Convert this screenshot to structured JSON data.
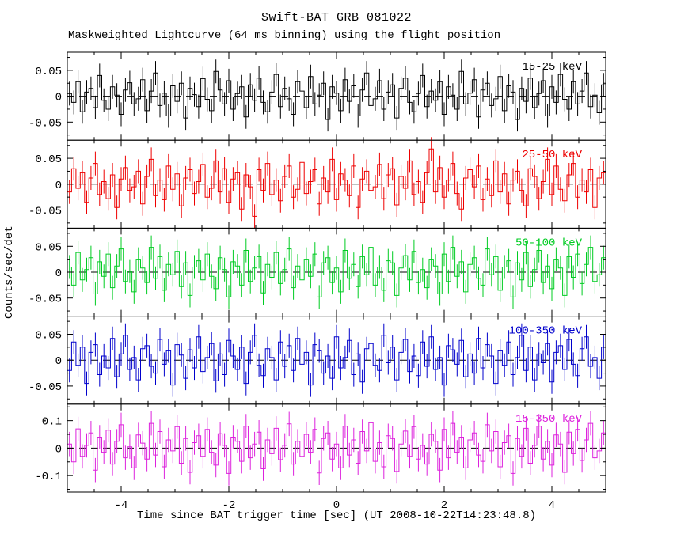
{
  "chart_data": {
    "type": "line",
    "style": "stepped histogram with vertical error bars, 5 stacked panels",
    "title": "Swift-BAT GRB 081022",
    "subtitle": "Maskweighted Lightcurve (64 ms binning) using the flight position",
    "xlabel": "Time since BAT trigger time [sec] (UT 2008-10-22T14:23:48.8)",
    "ylabel": "Counts/sec/det",
    "xlim": [
      -5,
      5
    ],
    "xticks_major": [
      -4,
      -2,
      0,
      2,
      4
    ],
    "xtick_minor_step": 0.5,
    "binning_label": "64 ms",
    "zero_line": {
      "style": "dashed",
      "color": "#000000"
    },
    "panels": [
      {
        "label": "15-25 keV",
        "color": "#000000",
        "ylim": [
          -0.085,
          0.085
        ],
        "yticks": [
          0.05,
          0,
          -0.05
        ],
        "ytick_minor_step": 0.025,
        "err_milli": 23,
        "values_milli": [
          5,
          -12,
          28,
          -30,
          8,
          15,
          -22,
          40,
          -8,
          -25,
          18,
          2,
          -35,
          12,
          26,
          -15,
          -5,
          32,
          -28,
          10,
          45,
          -18,
          6,
          -38,
          20,
          -10,
          25,
          -42,
          15,
          3,
          -20,
          34,
          -6,
          -28,
          48,
          12,
          -15,
          30,
          -25,
          5,
          18,
          -40,
          22,
          -8,
          35,
          -12,
          -30,
          8,
          42,
          -20,
          15,
          -5,
          -35,
          28,
          10,
          -22,
          38,
          -15,
          2,
          25,
          -45,
          18,
          6,
          -28,
          32,
          -10,
          20,
          -38,
          12,
          45,
          -18,
          -5,
          30,
          -25,
          8,
          22,
          -42,
          15,
          35,
          -12,
          -30,
          5,
          40,
          -20,
          10,
          -8,
          28,
          -35,
          18,
          2,
          -25,
          48,
          -15,
          6,
          32,
          -40,
          12,
          25,
          -18,
          -5,
          38,
          -28,
          20,
          8,
          -45,
          15,
          -10,
          35,
          -22,
          5,
          30,
          -38,
          18,
          -12,
          42,
          -6,
          -25,
          28,
          -15,
          10,
          45,
          -20,
          2,
          -32,
          22
        ]
      },
      {
        "label": "25-50 keV",
        "color": "#ee0000",
        "ylim": [
          -0.085,
          0.085
        ],
        "yticks": [
          0.05,
          0,
          -0.05
        ],
        "ytick_minor_step": 0.025,
        "err_milli": 23,
        "values_milli": [
          -15,
          30,
          -8,
          22,
          -35,
          12,
          40,
          -20,
          5,
          -28,
          18,
          -45,
          10,
          32,
          -12,
          -5,
          25,
          -38,
          15,
          48,
          -22,
          8,
          -30,
          35,
          -10,
          20,
          -42,
          12,
          28,
          -18,
          5,
          38,
          -25,
          -8,
          45,
          -15,
          30,
          -35,
          10,
          22,
          -48,
          18,
          -5,
          -62,
          28,
          -12,
          40,
          -20,
          8,
          -32,
          15,
          35,
          -25,
          -10,
          42,
          -18,
          5,
          28,
          -38,
          12,
          -15,
          48,
          -30,
          20,
          8,
          -22,
          35,
          -45,
          10,
          25,
          -12,
          -5,
          38,
          -28,
          18,
          30,
          -40,
          15,
          -8,
          45,
          -20,
          5,
          -35,
          22,
          68,
          -15,
          32,
          -25,
          8,
          40,
          -18,
          -48,
          12,
          28,
          -5,
          35,
          -30,
          10,
          -22,
          45,
          -15,
          20,
          -38,
          8,
          25,
          -12,
          -42,
          30,
          15,
          -28,
          5,
          48,
          -20,
          35,
          -10,
          -32,
          18,
          40,
          -25,
          8,
          -15,
          28,
          -45,
          12,
          22
        ]
      },
      {
        "label": "50-100 keV",
        "color": "#00cc22",
        "ylim": [
          -0.085,
          0.085
        ],
        "yticks": [
          0.05,
          0,
          -0.05
        ],
        "ytick_minor_step": 0.025,
        "err_milli": 23,
        "values_milli": [
          10,
          -25,
          38,
          -15,
          5,
          28,
          -42,
          20,
          -8,
          35,
          -30,
          12,
          45,
          -18,
          2,
          -38,
          25,
          8,
          -20,
          48,
          -12,
          30,
          -35,
          15,
          -5,
          40,
          -28,
          18,
          -45,
          10,
          22,
          -15,
          35,
          -8,
          -32,
          28,
          5,
          -48,
          20,
          12,
          -25,
          42,
          -18,
          8,
          30,
          -40,
          15,
          -10,
          38,
          -22,
          5,
          45,
          -30,
          12,
          -15,
          25,
          -8,
          35,
          -48,
          18,
          28,
          -20,
          8,
          -38,
          42,
          -12,
          15,
          -28,
          30,
          -5,
          48,
          -25,
          10,
          -35,
          22,
          18,
          -45,
          8,
          32,
          -15,
          40,
          -20,
          5,
          -30,
          25,
          12,
          -42,
          35,
          -18,
          48,
          -8,
          20,
          -38,
          15,
          28,
          -12,
          -25,
          45,
          -5,
          30,
          -35,
          10,
          22,
          -48,
          18,
          -15,
          38,
          -28,
          5,
          42,
          -20,
          12,
          -32,
          25,
          8,
          -45,
          30,
          -10,
          35,
          -22,
          15,
          48,
          -18,
          -5,
          28
        ]
      },
      {
        "label": "100-350 keV",
        "color": "#0000cc",
        "ylim": [
          -0.085,
          0.085
        ],
        "yticks": [
          0.05,
          0,
          -0.05
        ],
        "ytick_minor_step": 0.025,
        "err_milli": 23,
        "values_milli": [
          -20,
          35,
          -10,
          25,
          -45,
          15,
          30,
          -28,
          8,
          -15,
          42,
          -32,
          12,
          48,
          -18,
          5,
          -38,
          22,
          28,
          -12,
          -25,
          40,
          -8,
          18,
          -48,
          30,
          10,
          -35,
          20,
          -15,
          45,
          -22,
          5,
          32,
          -40,
          12,
          -28,
          38,
          8,
          -18,
          25,
          -45,
          15,
          48,
          -10,
          -30,
          22,
          5,
          -38,
          35,
          -12,
          28,
          -20,
          42,
          -8,
          15,
          -48,
          30,
          18,
          -25,
          8,
          -35,
          45,
          -15,
          5,
          38,
          -28,
          12,
          -42,
          22,
          32,
          -10,
          -20,
          48,
          -5,
          25,
          -38,
          15,
          40,
          -22,
          8,
          -30,
          35,
          -12,
          45,
          -18,
          5,
          -48,
          28,
          20,
          -8,
          38,
          -32,
          12,
          -25,
          42,
          -15,
          30,
          8,
          -45,
          18,
          -10,
          35,
          -28,
          5,
          48,
          -20,
          25,
          -38,
          12,
          -5,
          32,
          -42,
          15,
          28,
          -18,
          40,
          -8,
          -30,
          22,
          45,
          -12,
          5,
          -35,
          25
        ]
      },
      {
        "label": "15-350 keV",
        "color": "#dd22dd",
        "ylim": [
          -0.16,
          0.16
        ],
        "yticks": [
          0.1,
          0,
          -0.1
        ],
        "ytick_minor_step": 0.05,
        "err_milli": 44,
        "values_milli": [
          15,
          -50,
          70,
          -30,
          10,
          55,
          -80,
          40,
          -15,
          65,
          -58,
          25,
          85,
          -35,
          5,
          -72,
          48,
          18,
          -40,
          90,
          -25,
          60,
          -68,
          30,
          -10,
          78,
          -55,
          35,
          -88,
          20,
          45,
          -30,
          68,
          -15,
          -62,
          52,
          10,
          -92,
          40,
          25,
          -48,
          80,
          -35,
          15,
          58,
          -75,
          30,
          -20,
          72,
          -42,
          10,
          88,
          -58,
          25,
          -30,
          50,
          -15,
          68,
          -90,
          35,
          55,
          -40,
          15,
          -72,
          80,
          -25,
          30,
          -55,
          60,
          -10,
          92,
          -48,
          20,
          -68,
          45,
          35,
          -85,
          15,
          62,
          -30,
          78,
          -40,
          10,
          -58,
          50,
          25,
          -80,
          68,
          -35,
          90,
          -15,
          40,
          -72,
          30,
          55,
          -25,
          -48,
          85,
          -10,
          60,
          -68,
          20,
          45,
          -92,
          35,
          -30,
          72,
          -55,
          10,
          80,
          -40,
          25,
          -62,
          48,
          15,
          -88,
          58,
          -20,
          68,
          -45,
          30,
          90,
          -35,
          -10,
          55
        ]
      }
    ]
  }
}
